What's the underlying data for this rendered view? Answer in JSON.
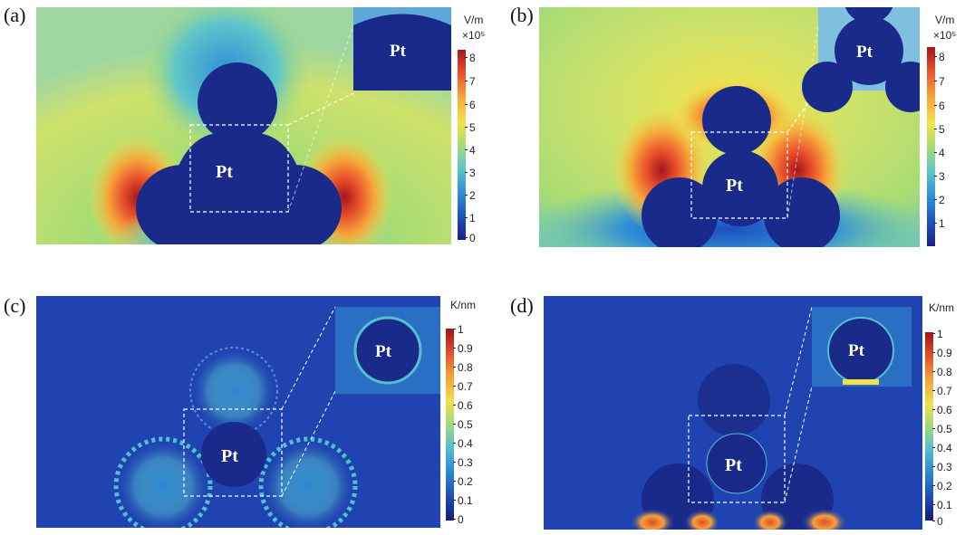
{
  "panels": [
    {
      "label": "(a)",
      "pt": "Pt",
      "unit": "V/m",
      "scale": "×10⁵",
      "ticks": [
        "8",
        "7",
        "6",
        "5",
        "4",
        "3",
        "2",
        "1",
        "0"
      ]
    },
    {
      "label": "(b)",
      "pt": "Pt",
      "unit": "V/m",
      "scale": "×10⁵",
      "ticks": [
        "8",
        "7",
        "6",
        "5",
        "4",
        "3",
        "2",
        "1"
      ]
    },
    {
      "label": "(c)",
      "pt": "Pt",
      "unit": "K/nm",
      "scale": "",
      "ticks": [
        "1",
        "0.9",
        "0.8",
        "0.7",
        "0.6",
        "0.5",
        "0.4",
        "0.3",
        "0.2",
        "0.1",
        "0"
      ]
    },
    {
      "label": "(d)",
      "pt": "Pt",
      "unit": "K/nm",
      "scale": "",
      "ticks": [
        "1",
        "0.9",
        "0.8",
        "0.7",
        "0.6",
        "0.5",
        "0.4",
        "0.3",
        "0.2",
        "0.1",
        "0"
      ]
    }
  ],
  "colormap": {
    "low": "#1a1f8a",
    "mid": "#a9dc73",
    "high": "#a4161c",
    "field_bg": "#d7e36a",
    "gradient_bg": "#1f43b0"
  }
}
